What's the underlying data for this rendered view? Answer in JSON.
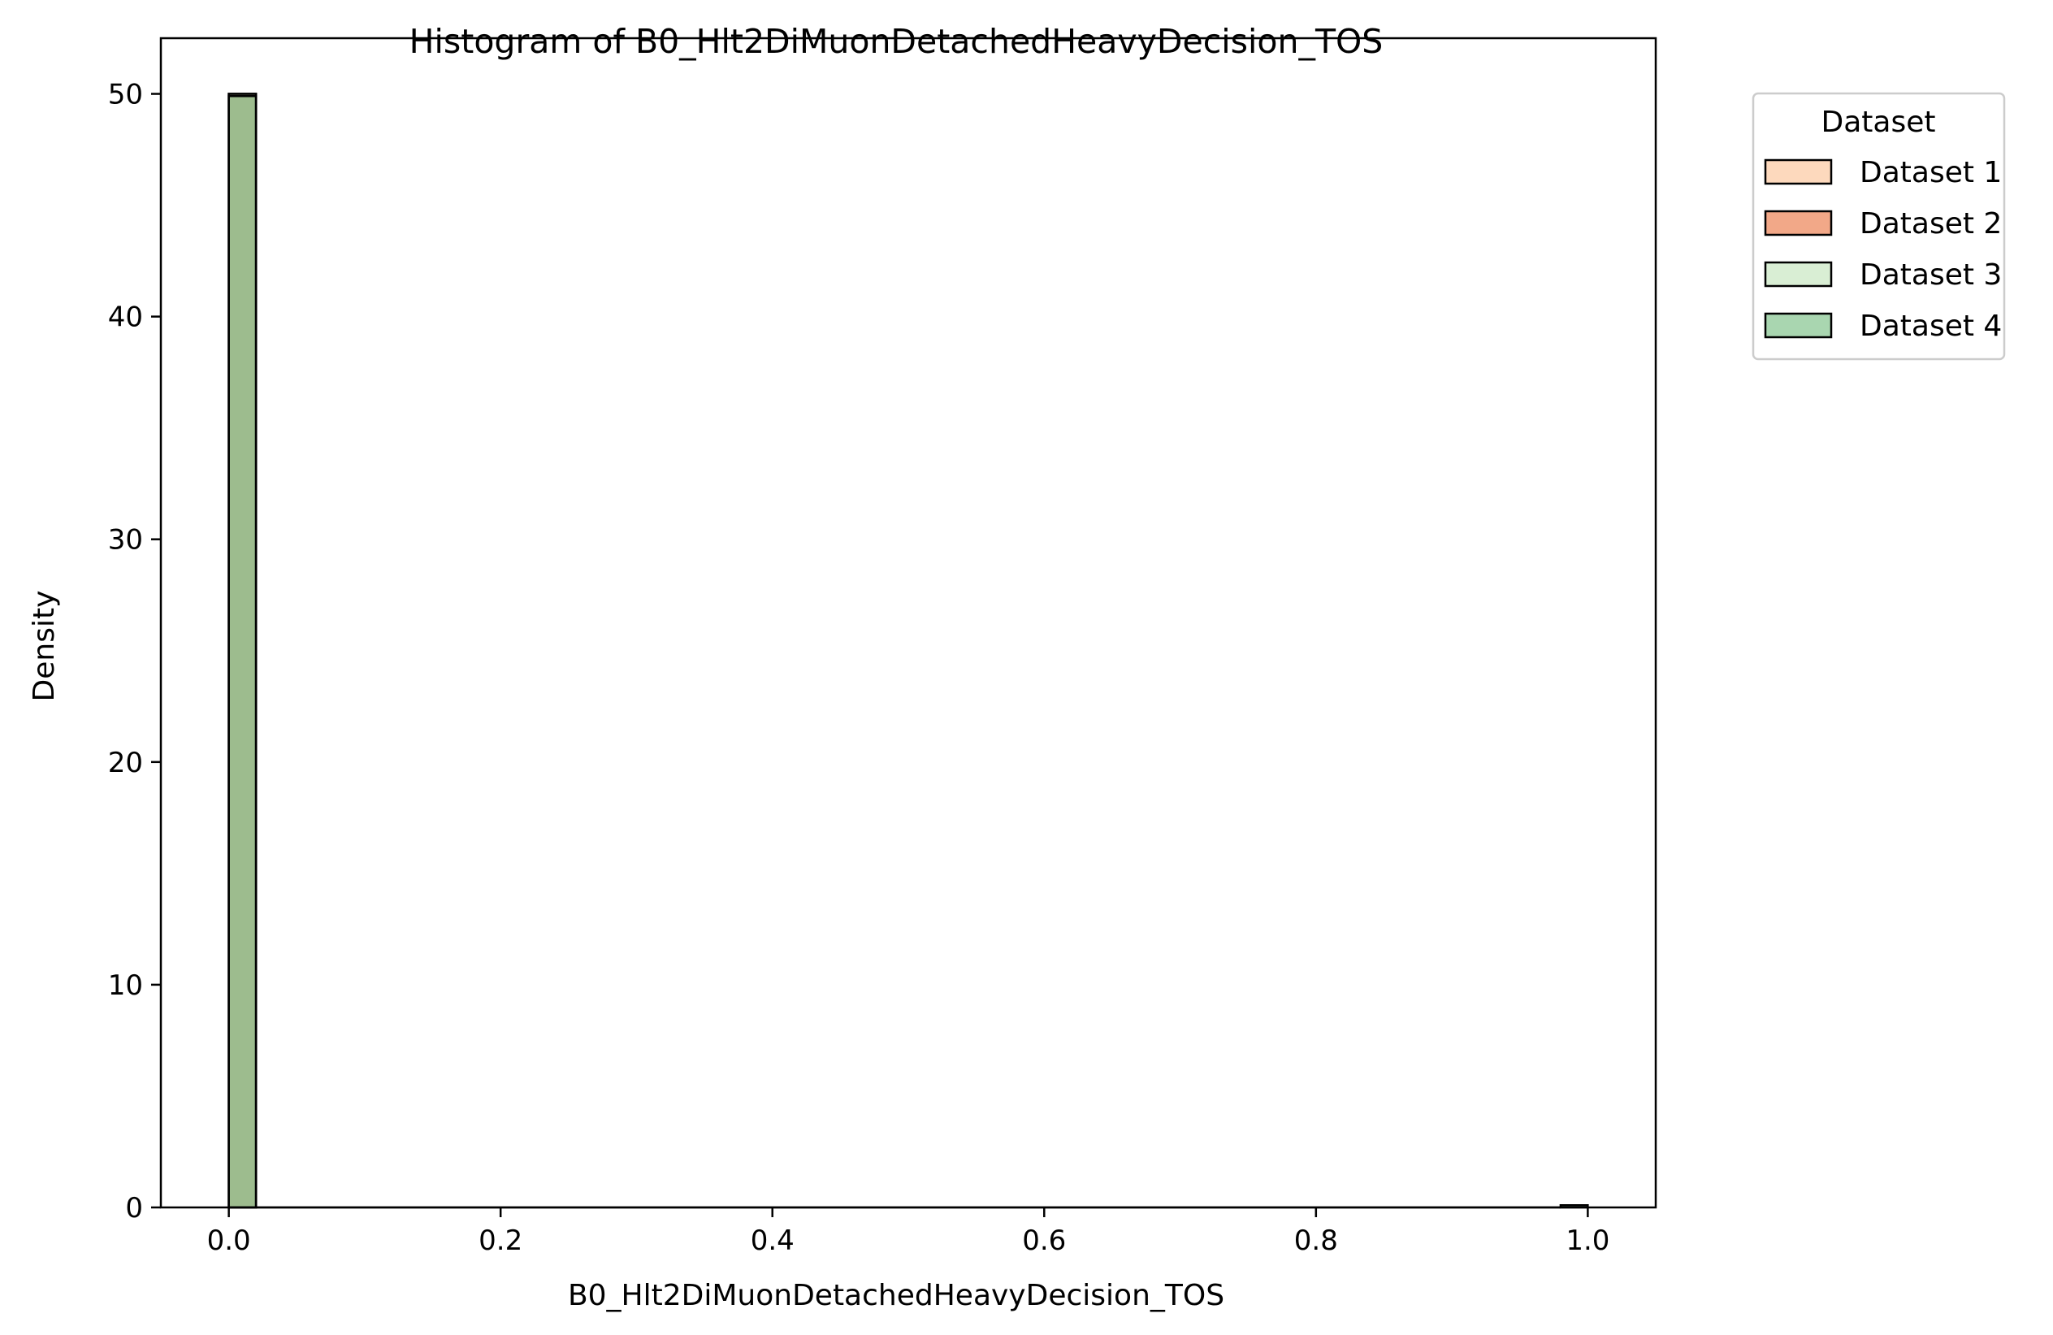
{
  "chart_data": {
    "type": "bar",
    "title": "Histogram of B0_Hlt2DiMuonDetachedHeavyDecision_TOS",
    "xlabel": "B0_Hlt2DiMuonDetachedHeavyDecision_TOS",
    "ylabel": "Density",
    "xlim": [
      -0.05,
      1.05
    ],
    "ylim": [
      0,
      52.5
    ],
    "xticks": [
      0.0,
      0.2,
      0.4,
      0.6,
      0.8,
      1.0
    ],
    "xtick_labels": [
      "0.0",
      "0.2",
      "0.4",
      "0.6",
      "0.8",
      "1.0"
    ],
    "yticks": [
      0,
      10,
      20,
      30,
      40,
      50
    ],
    "ytick_labels": [
      "0",
      "10",
      "20",
      "30",
      "40",
      "50"
    ],
    "grid": false,
    "legend": {
      "title": "Dataset",
      "placement": "outside-top-right",
      "entries": [
        {
          "label": "Dataset 1",
          "color": "#fdd9bd"
        },
        {
          "label": "Dataset 2",
          "color": "#f2a888"
        },
        {
          "label": "Dataset 3",
          "color": "#d9eed4"
        },
        {
          "label": "Dataset 4",
          "color": "#a9d6b0"
        }
      ]
    },
    "bins": {
      "start": 0.0,
      "end": 1.0,
      "count": 50,
      "width": 0.02
    },
    "series": [
      {
        "name": "Dataset 1",
        "color": "#fdd9bd",
        "opacity": 0.5,
        "values": [
          {
            "x0": 0.0,
            "x1": 0.02,
            "density": 50.0
          },
          {
            "x0": 0.98,
            "x1": 1.0,
            "density": 0.0
          }
        ]
      },
      {
        "name": "Dataset 2",
        "color": "#e8845a",
        "opacity": 0.5,
        "values": [
          {
            "x0": 0.0,
            "x1": 0.02,
            "density": 50.0
          },
          {
            "x0": 0.98,
            "x1": 1.0,
            "density": 0.0
          }
        ]
      },
      {
        "name": "Dataset 3",
        "color": "#cfe9c9",
        "opacity": 0.5,
        "values": [
          {
            "x0": 0.0,
            "x1": 0.02,
            "density": 50.0
          },
          {
            "x0": 0.98,
            "x1": 1.0,
            "density": 0.0
          }
        ]
      },
      {
        "name": "Dataset 4",
        "color": "#5aa86a",
        "opacity": 0.5,
        "values": [
          {
            "x0": 0.0,
            "x1": 0.02,
            "density": 49.9
          },
          {
            "x0": 0.98,
            "x1": 1.0,
            "density": 0.1
          }
        ]
      }
    ]
  }
}
